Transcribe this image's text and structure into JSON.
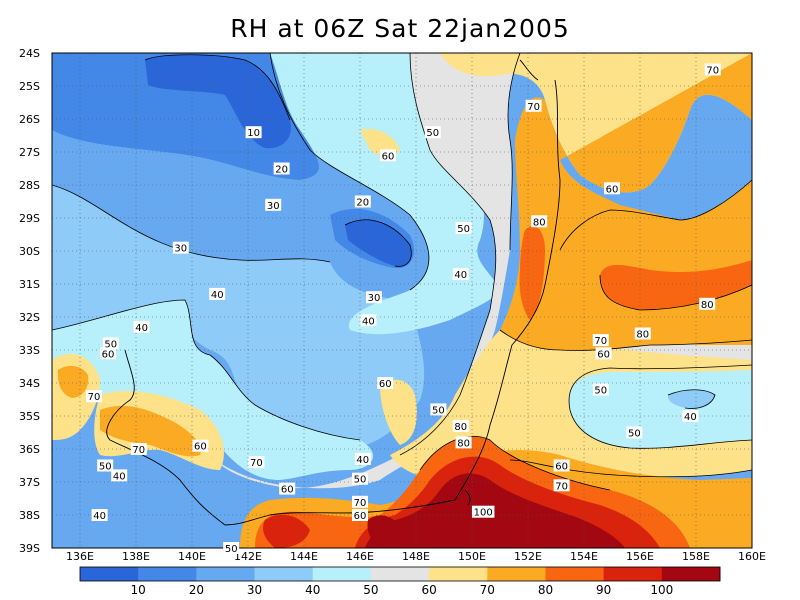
{
  "title": "RH at 06Z Sat 22jan2005",
  "map": {
    "x_ticks": [
      "136E",
      "138E",
      "140E",
      "142E",
      "144E",
      "146E",
      "148E",
      "150E",
      "152E",
      "154E",
      "156E",
      "158E",
      "160E"
    ],
    "y_ticks": [
      "24S",
      "25S",
      "26S",
      "27S",
      "28S",
      "29S",
      "30S",
      "31S",
      "32S",
      "33S",
      "34S",
      "35S",
      "36S",
      "37S",
      "38S",
      "39S"
    ],
    "lon_range": [
      135,
      160
    ],
    "lat_range": [
      -39,
      -24
    ],
    "grid": "dotted",
    "contour_labels": [
      {
        "text": "10",
        "lon": 142.2,
        "lat": -26.4
      },
      {
        "text": "20",
        "lon": 143.2,
        "lat": -27.5
      },
      {
        "text": "20",
        "lon": 146.1,
        "lat": -28.5
      },
      {
        "text": "30",
        "lon": 142.9,
        "lat": -28.6
      },
      {
        "text": "30",
        "lon": 139.6,
        "lat": -29.9
      },
      {
        "text": "30",
        "lon": 146.5,
        "lat": -31.4
      },
      {
        "text": "40",
        "lon": 140.9,
        "lat": -31.3
      },
      {
        "text": "40",
        "lon": 138.2,
        "lat": -32.3
      },
      {
        "text": "40",
        "lon": 146.3,
        "lat": -32.1
      },
      {
        "text": "40",
        "lon": 149.6,
        "lat": -30.7
      },
      {
        "text": "40",
        "lon": 146.1,
        "lat": -36.3
      },
      {
        "text": "40",
        "lon": 137.4,
        "lat": -36.8
      },
      {
        "text": "40",
        "lon": 136.7,
        "lat": -38.0
      },
      {
        "text": "40",
        "lon": 157.8,
        "lat": -35.0
      },
      {
        "text": "50",
        "lon": 137.1,
        "lat": -32.8
      },
      {
        "text": "50",
        "lon": 148.6,
        "lat": -26.4
      },
      {
        "text": "50",
        "lon": 149.7,
        "lat": -29.3
      },
      {
        "text": "50",
        "lon": 148.8,
        "lat": -34.8
      },
      {
        "text": "50",
        "lon": 136.9,
        "lat": -36.5
      },
      {
        "text": "50",
        "lon": 141.4,
        "lat": -39.0
      },
      {
        "text": "50",
        "lon": 146.0,
        "lat": -36.9
      },
      {
        "text": "50",
        "lon": 154.6,
        "lat": -34.2
      },
      {
        "text": "50",
        "lon": 155.8,
        "lat": -35.5
      },
      {
        "text": "60",
        "lon": 137.0,
        "lat": -33.1
      },
      {
        "text": "60",
        "lon": 147.0,
        "lat": -27.1
      },
      {
        "text": "60",
        "lon": 146.9,
        "lat": -34.0
      },
      {
        "text": "60",
        "lon": 154.7,
        "lat": -33.1
      },
      {
        "text": "60",
        "lon": 140.3,
        "lat": -35.9
      },
      {
        "text": "60",
        "lon": 155.0,
        "lat": -28.1
      },
      {
        "text": "60",
        "lon": 143.4,
        "lat": -37.2
      },
      {
        "text": "60",
        "lon": 146.0,
        "lat": -38.0
      },
      {
        "text": "60",
        "lon": 153.2,
        "lat": -36.5
      },
      {
        "text": "70",
        "lon": 158.6,
        "lat": -24.5
      },
      {
        "text": "70",
        "lon": 152.2,
        "lat": -25.6
      },
      {
        "text": "70",
        "lon": 136.5,
        "lat": -34.4
      },
      {
        "text": "70",
        "lon": 138.1,
        "lat": -36.0
      },
      {
        "text": "70",
        "lon": 142.3,
        "lat": -36.4
      },
      {
        "text": "70",
        "lon": 146.0,
        "lat": -37.6
      },
      {
        "text": "70",
        "lon": 154.6,
        "lat": -32.7
      },
      {
        "text": "70",
        "lon": 153.2,
        "lat": -37.1
      },
      {
        "text": "80",
        "lon": 152.4,
        "lat": -29.1
      },
      {
        "text": "80",
        "lon": 158.4,
        "lat": -31.6
      },
      {
        "text": "80",
        "lon": 156.1,
        "lat": -32.5
      },
      {
        "text": "80",
        "lon": 149.6,
        "lat": -35.3
      },
      {
        "text": "80",
        "lon": 149.7,
        "lat": -35.8
      },
      {
        "text": "100",
        "lon": 150.4,
        "lat": -37.9
      }
    ]
  },
  "colorbar": {
    "labels": [
      "10",
      "20",
      "30",
      "40",
      "50",
      "60",
      "70",
      "80",
      "90",
      "100"
    ],
    "colors": [
      "#2a66d8",
      "#4388e6",
      "#67a9f1",
      "#8fcbf8",
      "#b7f0fa",
      "#e4e4e4",
      "#fde28a",
      "#fbab23",
      "#f86611",
      "#d9230c",
      "#a20712"
    ]
  }
}
